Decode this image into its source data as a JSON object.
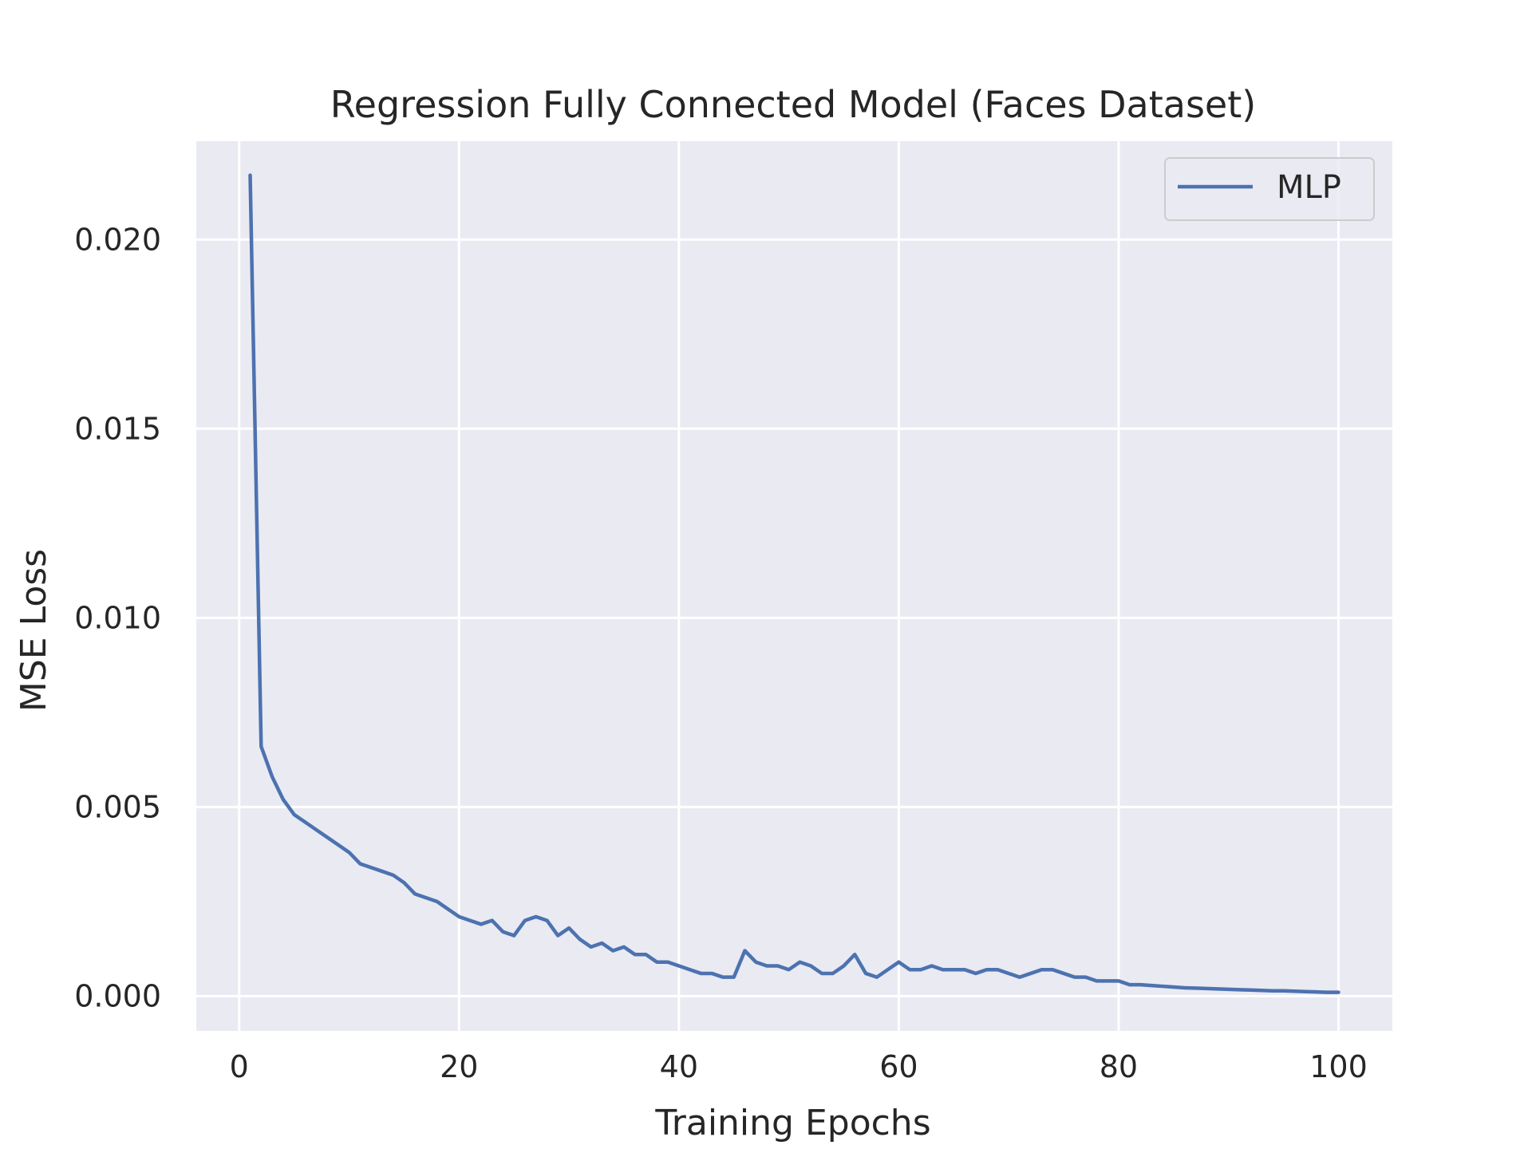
{
  "chart_data": {
    "type": "line",
    "title": "Regression Fully Connected Model (Faces Dataset)",
    "xlabel": "Training Epochs",
    "ylabel": "MSE Loss",
    "xlim": [
      -3.9,
      104.9
    ],
    "ylim": [
      -0.00092,
      0.0226
    ],
    "xticks": [
      0,
      20,
      40,
      60,
      80,
      100
    ],
    "xtick_labels": [
      "0",
      "20",
      "40",
      "60",
      "80",
      "100"
    ],
    "yticks": [
      0.0,
      0.005,
      0.01,
      0.015,
      0.02
    ],
    "ytick_labels": [
      "0.000",
      "0.005",
      "0.010",
      "0.015",
      "0.020"
    ],
    "grid": true,
    "legend": "top-right",
    "background": "#eaeaf2",
    "series": [
      {
        "name": "MLP",
        "color": "#4c72b0",
        "x": [
          1,
          2,
          3,
          4,
          5,
          6,
          7,
          8,
          9,
          10,
          11,
          12,
          13,
          14,
          15,
          16,
          17,
          18,
          19,
          20,
          21,
          22,
          23,
          24,
          25,
          26,
          27,
          28,
          29,
          30,
          31,
          32,
          33,
          34,
          35,
          36,
          37,
          38,
          39,
          40,
          41,
          42,
          43,
          44,
          45,
          46,
          47,
          48,
          49,
          50,
          51,
          52,
          53,
          54,
          55,
          56,
          57,
          58,
          59,
          60,
          61,
          62,
          63,
          64,
          65,
          66,
          67,
          68,
          69,
          70,
          71,
          72,
          73,
          74,
          75,
          76,
          77,
          78,
          79,
          80,
          81,
          82,
          83,
          84,
          85,
          86,
          87,
          88,
          89,
          90,
          91,
          92,
          93,
          94,
          95,
          96,
          97,
          98,
          99,
          100
        ],
        "y": [
          0.0217,
          0.0066,
          0.0058,
          0.0052,
          0.0048,
          0.0046,
          0.0044,
          0.0042,
          0.004,
          0.0038,
          0.0035,
          0.0034,
          0.0033,
          0.0032,
          0.003,
          0.0027,
          0.0026,
          0.0025,
          0.0023,
          0.0021,
          0.002,
          0.0019,
          0.002,
          0.0017,
          0.0016,
          0.002,
          0.0021,
          0.002,
          0.0016,
          0.0018,
          0.0015,
          0.0013,
          0.0014,
          0.0012,
          0.0013,
          0.0011,
          0.0011,
          0.0009,
          0.0009,
          0.0008,
          0.0007,
          0.0006,
          0.0006,
          0.0005,
          0.0005,
          0.0012,
          0.0009,
          0.0008,
          0.0008,
          0.0007,
          0.0009,
          0.0008,
          0.0006,
          0.0006,
          0.0008,
          0.0011,
          0.0006,
          0.0005,
          0.0007,
          0.0009,
          0.0007,
          0.0007,
          0.0008,
          0.0007,
          0.0007,
          0.0007,
          0.0006,
          0.0007,
          0.0007,
          0.0006,
          0.0005,
          0.0006,
          0.0007,
          0.0007,
          0.0006,
          0.0005,
          0.0005,
          0.0004,
          0.0004,
          0.0004,
          0.0003,
          0.0003,
          0.00028,
          0.00026,
          0.00024,
          0.00022,
          0.00021,
          0.0002,
          0.00019,
          0.00018,
          0.00017,
          0.00016,
          0.00015,
          0.00014,
          0.00014,
          0.00013,
          0.00012,
          0.00011,
          0.0001,
          0.0001
        ]
      }
    ]
  }
}
